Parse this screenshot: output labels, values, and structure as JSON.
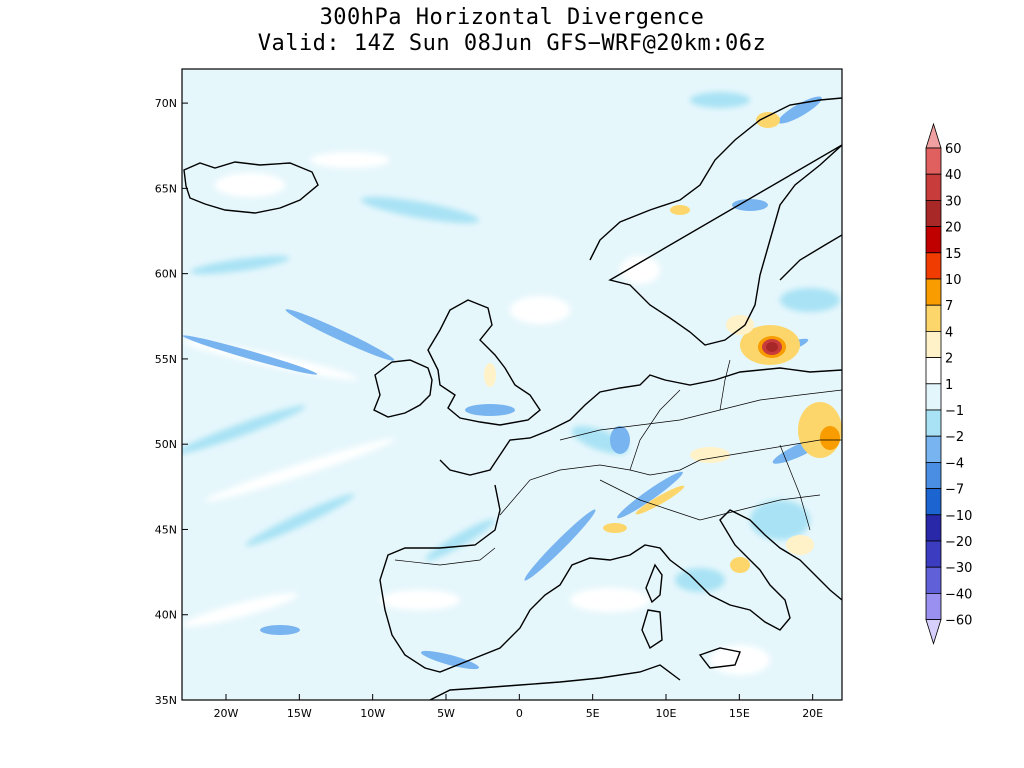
{
  "title_line1": "300hPa Horizontal Divergence",
  "title_line2": "Valid: 14Z Sun 08Jun GFS−WRF@20km:06z",
  "chart_data": {
    "type": "heatmap",
    "title": "300hPa Horizontal Divergence",
    "subtitle": "Valid: 14Z Sun 08Jun GFS−WRF@20km:06z",
    "xlabel": "",
    "ylabel": "",
    "xlim": [
      -23,
      22
    ],
    "ylim": [
      35,
      72
    ],
    "x_ticks": [
      {
        "value": -20,
        "label": "20W"
      },
      {
        "value": -15,
        "label": "15W"
      },
      {
        "value": -10,
        "label": "10W"
      },
      {
        "value": -5,
        "label": "5W"
      },
      {
        "value": 0,
        "label": "0"
      },
      {
        "value": 5,
        "label": "5E"
      },
      {
        "value": 10,
        "label": "10E"
      },
      {
        "value": 15,
        "label": "15E"
      },
      {
        "value": 20,
        "label": "20E"
      }
    ],
    "y_ticks": [
      {
        "value": 35,
        "label": "35N"
      },
      {
        "value": 40,
        "label": "40N"
      },
      {
        "value": 45,
        "label": "45N"
      },
      {
        "value": 50,
        "label": "50N"
      },
      {
        "value": 55,
        "label": "55N"
      },
      {
        "value": 60,
        "label": "60N"
      },
      {
        "value": 65,
        "label": "65N"
      },
      {
        "value": 70,
        "label": "70N"
      }
    ],
    "colorbar": [
      {
        "label": "60",
        "color": "#f0a0a0"
      },
      {
        "label": "40",
        "color": "#e06060"
      },
      {
        "label": "30",
        "color": "#c83c3c"
      },
      {
        "label": "20",
        "color": "#a82828"
      },
      {
        "label": "15",
        "color": "#c00000"
      },
      {
        "label": "10",
        "color": "#f03c00"
      },
      {
        "label": "7",
        "color": "#f89c00"
      },
      {
        "label": "4",
        "color": "#fcd66a"
      },
      {
        "label": "2",
        "color": "#fff2c8"
      },
      {
        "label": "1",
        "color": "#ffffff"
      },
      {
        "label": "−1",
        "color": "#e2f6fc"
      },
      {
        "label": "−2",
        "color": "#a8e2f4"
      },
      {
        "label": "−4",
        "color": "#78b4f0"
      },
      {
        "label": "−7",
        "color": "#4a8ee4"
      },
      {
        "label": "−10",
        "color": "#1c64d0"
      },
      {
        "label": "−20",
        "color": "#2828a8"
      },
      {
        "label": "−30",
        "color": "#3c3cc0"
      },
      {
        "label": "−40",
        "color": "#6060d8"
      },
      {
        "label": "−60",
        "color": "#9a90f0"
      }
    ],
    "colorbar_bottom_color": "#d8d0fc",
    "field_background_color": "#e6f7fc",
    "grid": false
  }
}
